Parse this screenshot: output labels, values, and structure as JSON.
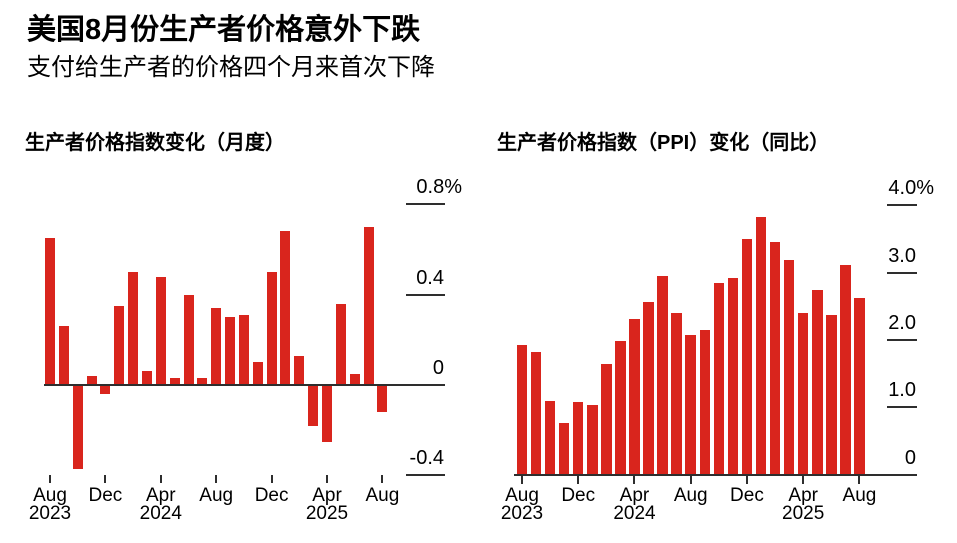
{
  "header": {
    "title": "美国8月份生产者价格意外下跌",
    "subtitle": "支付给生产者的价格四个月来首次下降"
  },
  "colors": {
    "bar": "#d9251d",
    "axis": "#2e2e2e",
    "text": "#000000",
    "background": "#ffffff"
  },
  "chart_data": [
    {
      "type": "bar",
      "title": "生产者价格指数变化（月度）",
      "unit": "%",
      "grid": false,
      "legend_position": "none",
      "ylim": [
        -0.5,
        0.85
      ],
      "months": [
        "Aug 2023",
        "Sep 2023",
        "Oct 2023",
        "Nov 2023",
        "Dec 2023",
        "Jan 2024",
        "Feb 2024",
        "Mar 2024",
        "Apr 2024",
        "May 2024",
        "Jun 2024",
        "Jul 2024",
        "Aug 2024",
        "Sep 2024",
        "Oct 2024",
        "Nov 2024",
        "Dec 2024",
        "Jan 2025",
        "Feb 2025",
        "Mar 2025",
        "Apr 2025",
        "May 2025",
        "Jun 2025",
        "Jul 2025",
        "Aug 2025"
      ],
      "values": [
        0.65,
        0.26,
        -0.37,
        0.04,
        -0.04,
        0.35,
        0.5,
        0.06,
        0.48,
        0.03,
        0.4,
        0.03,
        0.34,
        0.3,
        0.31,
        0.1,
        0.5,
        0.68,
        0.13,
        -0.18,
        -0.25,
        0.36,
        0.05,
        0.7,
        -0.12
      ],
      "yticks": [
        {
          "value": 0.8,
          "label": "0.8%"
        },
        {
          "value": 0.4,
          "label": "0.4"
        },
        {
          "value": 0,
          "label": "0"
        },
        {
          "value": -0.4,
          "label": "-0.4"
        }
      ],
      "xticks": [
        {
          "index": 0,
          "label": "Aug",
          "year": "2023"
        },
        {
          "index": 4,
          "label": "Dec"
        },
        {
          "index": 8,
          "label": "Apr",
          "year": "2024"
        },
        {
          "index": 12,
          "label": "Aug"
        },
        {
          "index": 16,
          "label": "Dec"
        },
        {
          "index": 20,
          "label": "Apr",
          "year": "2025"
        },
        {
          "index": 24,
          "label": "Aug"
        }
      ]
    },
    {
      "type": "bar",
      "title": "生产者价格指数（PPI）变化（同比）",
      "unit": "%",
      "grid": false,
      "legend_position": "none",
      "ylim": [
        0,
        4.2
      ],
      "months": [
        "Aug 2023",
        "Sep 2023",
        "Oct 2023",
        "Nov 2023",
        "Dec 2023",
        "Jan 2024",
        "Feb 2024",
        "Mar 2024",
        "Apr 2024",
        "May 2024",
        "Jun 2024",
        "Jul 2024",
        "Aug 2024",
        "Sep 2024",
        "Oct 2024",
        "Nov 2024",
        "Dec 2024",
        "Jan 2025",
        "Feb 2025",
        "Mar 2025",
        "Apr 2025",
        "May 2025",
        "Jun 2025",
        "Jul 2025",
        "Aug 2025"
      ],
      "values": [
        1.93,
        1.82,
        1.09,
        0.77,
        1.07,
        1.04,
        1.64,
        1.98,
        2.31,
        2.56,
        2.95,
        2.4,
        2.07,
        2.14,
        2.84,
        2.92,
        3.5,
        3.82,
        3.45,
        3.18,
        2.4,
        2.74,
        2.37,
        3.11,
        2.62
      ],
      "yticks": [
        {
          "value": 4.0,
          "label": "4.0%"
        },
        {
          "value": 3.0,
          "label": "3.0"
        },
        {
          "value": 2.0,
          "label": "2.0"
        },
        {
          "value": 1.0,
          "label": "1.0"
        },
        {
          "value": 0,
          "label": "0"
        }
      ],
      "xticks": [
        {
          "index": 0,
          "label": "Aug",
          "year": "2023"
        },
        {
          "index": 4,
          "label": "Dec"
        },
        {
          "index": 8,
          "label": "Apr",
          "year": "2024"
        },
        {
          "index": 12,
          "label": "Aug"
        },
        {
          "index": 16,
          "label": "Dec"
        },
        {
          "index": 20,
          "label": "Apr",
          "year": "2025"
        },
        {
          "index": 24,
          "label": "Aug"
        }
      ]
    }
  ]
}
